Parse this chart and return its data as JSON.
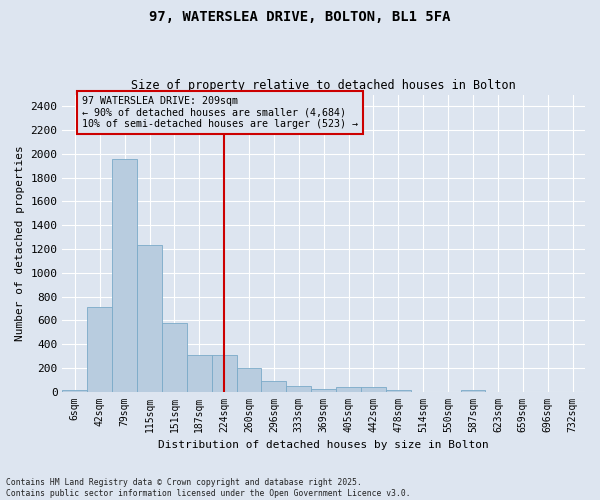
{
  "title1": "97, WATERSLEA DRIVE, BOLTON, BL1 5FA",
  "title2": "Size of property relative to detached houses in Bolton",
  "xlabel": "Distribution of detached houses by size in Bolton",
  "ylabel": "Number of detached properties",
  "categories": [
    "6sqm",
    "42sqm",
    "79sqm",
    "115sqm",
    "151sqm",
    "187sqm",
    "224sqm",
    "260sqm",
    "296sqm",
    "333sqm",
    "369sqm",
    "405sqm",
    "442sqm",
    "478sqm",
    "514sqm",
    "550sqm",
    "587sqm",
    "623sqm",
    "659sqm",
    "696sqm",
    "732sqm"
  ],
  "values": [
    15,
    710,
    1960,
    1235,
    580,
    310,
    310,
    200,
    85,
    50,
    25,
    35,
    35,
    15,
    0,
    0,
    15,
    0,
    0,
    0,
    0
  ],
  "bar_color": "#b8ccdf",
  "bar_edge_color": "#7aaac8",
  "vline_index": 6,
  "vline_color": "#cc0000",
  "box_edge_color": "#cc0000",
  "annotation_text_line1": "97 WATERSLEA DRIVE: 209sqm",
  "annotation_text_line2": "← 90% of detached houses are smaller (4,684)",
  "annotation_text_line3": "10% of semi-detached houses are larger (523) →",
  "ylim": [
    0,
    2500
  ],
  "yticks": [
    0,
    200,
    400,
    600,
    800,
    1000,
    1200,
    1400,
    1600,
    1800,
    2000,
    2200,
    2400
  ],
  "bg_color": "#dde5f0",
  "grid_color": "#ffffff",
  "footnote": "Contains HM Land Registry data © Crown copyright and database right 2025.\nContains public sector information licensed under the Open Government Licence v3.0."
}
